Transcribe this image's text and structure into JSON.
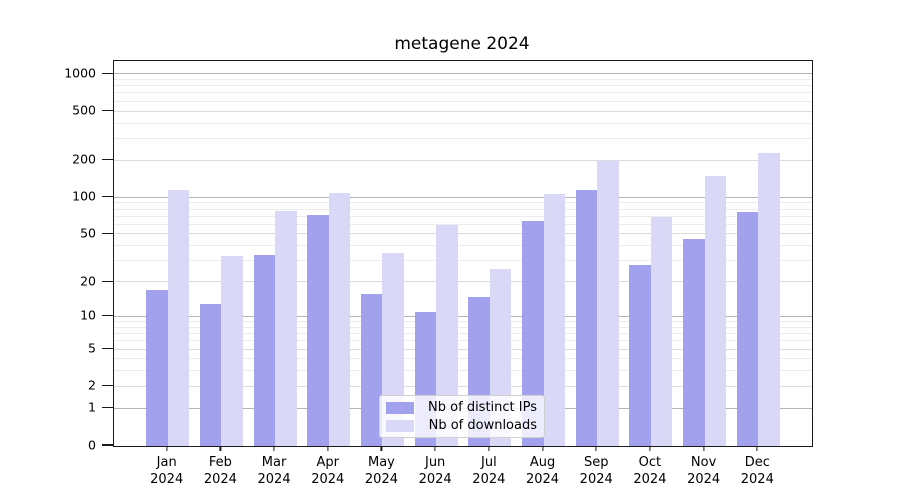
{
  "chart_data": {
    "type": "bar",
    "title": "metagene 2024",
    "categories": [
      "Jan 2024",
      "Feb 2024",
      "Mar 2024",
      "Apr 2024",
      "May 2024",
      "Jun 2024",
      "Jul 2024",
      "Aug 2024",
      "Sep 2024",
      "Oct 2024",
      "Nov 2024",
      "Dec 2024"
    ],
    "series": [
      {
        "name": "Nb of distinct IPs",
        "color": "#a1a1ee",
        "values": [
          17,
          13,
          34,
          72,
          16,
          11,
          15,
          65,
          115,
          28,
          46,
          77
        ]
      },
      {
        "name": "Nb of downloads",
        "color": "#d9d9f7",
        "values": [
          115,
          33,
          78,
          110,
          35,
          60,
          26,
          108,
          200,
          70,
          150,
          230
        ]
      }
    ],
    "xlabel": "",
    "ylabel": "",
    "yscale": "symlog(ln(1+v))",
    "ylim": [
      0,
      1280
    ],
    "yticks": [
      0,
      1,
      2,
      5,
      10,
      20,
      50,
      100,
      200,
      500,
      1000
    ],
    "decade_gridlines": [
      1,
      10,
      100,
      1000
    ],
    "minor_gridlines": [
      3,
      4,
      6,
      7,
      8,
      9,
      30,
      40,
      60,
      70,
      80,
      90,
      300,
      400,
      600,
      700,
      800,
      900
    ],
    "grid": true,
    "legend_position": "lower center",
    "colors": {
      "grid_major": "#b5b5b5",
      "grid_mid": "#dcdcdc",
      "grid_minor": "#ececec",
      "axis": "#1a1a1a"
    }
  }
}
